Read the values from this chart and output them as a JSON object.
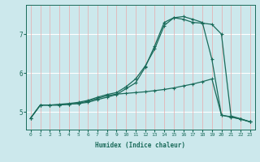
{
  "xlabel": "Humidex (Indice chaleur)",
  "background_color": "#cce8ec",
  "grid_color_h": "#ffffff",
  "grid_color_v": "#e8aaaa",
  "line_color": "#1a6b5a",
  "xlim": [
    -0.5,
    23.5
  ],
  "ylim": [
    4.55,
    7.75
  ],
  "xticks": [
    0,
    1,
    2,
    3,
    4,
    5,
    6,
    7,
    8,
    9,
    10,
    11,
    12,
    13,
    14,
    15,
    16,
    17,
    18,
    19,
    20,
    21,
    22,
    23
  ],
  "yticks": [
    5,
    6,
    7
  ],
  "line1_x": [
    0,
    1,
    2,
    3,
    4,
    5,
    6,
    7,
    8,
    9,
    10,
    11,
    12,
    13,
    14,
    15,
    16,
    17,
    18,
    19,
    20,
    21,
    22,
    23
  ],
  "line1_y": [
    4.85,
    5.18,
    5.18,
    5.18,
    5.2,
    5.22,
    5.25,
    5.32,
    5.38,
    5.45,
    5.6,
    5.75,
    6.15,
    6.7,
    7.3,
    7.42,
    7.38,
    7.3,
    7.28,
    7.25,
    7.0,
    4.9,
    4.83,
    4.75
  ],
  "line2_x": [
    0,
    1,
    2,
    3,
    4,
    5,
    6,
    7,
    8,
    9,
    10,
    11,
    12,
    13,
    14,
    15,
    16,
    17,
    18,
    19,
    20,
    21,
    22,
    23
  ],
  "line2_y": [
    4.85,
    5.18,
    5.18,
    5.2,
    5.22,
    5.25,
    5.3,
    5.38,
    5.45,
    5.5,
    5.65,
    5.85,
    6.18,
    6.62,
    7.22,
    7.42,
    7.45,
    7.38,
    7.3,
    6.35,
    4.92,
    4.88,
    4.82,
    4.75
  ],
  "line3_x": [
    0,
    1,
    2,
    3,
    4,
    5,
    6,
    7,
    8,
    9,
    10,
    11,
    12,
    13,
    14,
    15,
    16,
    17,
    18,
    19,
    20,
    21,
    22,
    23
  ],
  "line3_y": [
    4.85,
    5.18,
    5.18,
    5.18,
    5.2,
    5.22,
    5.28,
    5.35,
    5.42,
    5.46,
    5.48,
    5.5,
    5.52,
    5.55,
    5.58,
    5.62,
    5.67,
    5.72,
    5.78,
    5.85,
    4.92,
    4.87,
    4.82,
    4.75
  ]
}
